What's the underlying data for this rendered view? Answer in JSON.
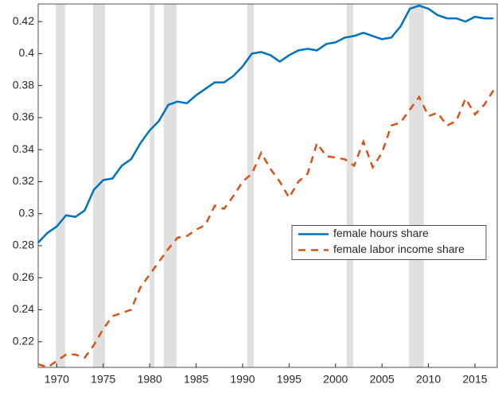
{
  "chart_data": {
    "type": "line",
    "x": [
      1968,
      1969,
      1970,
      1971,
      1972,
      1973,
      1974,
      1975,
      1976,
      1977,
      1978,
      1979,
      1980,
      1981,
      1982,
      1983,
      1984,
      1985,
      1986,
      1987,
      1988,
      1989,
      1990,
      1991,
      1992,
      1993,
      1994,
      1995,
      1996,
      1997,
      1998,
      1999,
      2000,
      2001,
      2002,
      2003,
      2004,
      2005,
      2006,
      2007,
      2008,
      2009,
      2010,
      2011,
      2012,
      2013,
      2014,
      2015,
      2016,
      2017
    ],
    "series": [
      {
        "name": "female hours share",
        "color": "#0072bd",
        "dash": false,
        "values": [
          0.282,
          0.288,
          0.292,
          0.299,
          0.298,
          0.302,
          0.315,
          0.321,
          0.322,
          0.33,
          0.334,
          0.344,
          0.352,
          0.358,
          0.368,
          0.37,
          0.369,
          0.374,
          0.378,
          0.382,
          0.382,
          0.386,
          0.392,
          0.4,
          0.401,
          0.399,
          0.395,
          0.399,
          0.402,
          0.403,
          0.402,
          0.406,
          0.407,
          0.41,
          0.411,
          0.413,
          0.411,
          0.409,
          0.41,
          0.417,
          0.428,
          0.43,
          0.428,
          0.424,
          0.422,
          0.422,
          0.42,
          0.423,
          0.422,
          0.422
        ]
      },
      {
        "name": "female labor income share",
        "color": "#d95319",
        "dash": true,
        "values": [
          0.206,
          0.204,
          0.208,
          0.212,
          0.212,
          0.21,
          0.218,
          0.228,
          0.236,
          0.238,
          0.24,
          0.254,
          0.262,
          0.27,
          0.278,
          0.285,
          0.286,
          0.29,
          0.293,
          0.305,
          0.303,
          0.311,
          0.32,
          0.325,
          0.338,
          0.328,
          0.32,
          0.31,
          0.32,
          0.325,
          0.344,
          0.336,
          0.335,
          0.334,
          0.33,
          0.345,
          0.329,
          0.338,
          0.355,
          0.357,
          0.365,
          0.373,
          0.361,
          0.363,
          0.355,
          0.358,
          0.372,
          0.362,
          0.368,
          0.377
        ]
      }
    ],
    "shaded_ranges": [
      [
        1969.9,
        1970.9
      ],
      [
        1973.9,
        1975.2
      ],
      [
        1980.0,
        1980.5
      ],
      [
        1981.5,
        1982.9
      ],
      [
        1990.5,
        1991.2
      ],
      [
        2001.2,
        2001.9
      ],
      [
        2007.9,
        2009.5
      ]
    ],
    "shade_color": "#e0e0e0",
    "xlim": [
      1968,
      2017.4
    ],
    "xticks": [
      1970,
      1975,
      1980,
      1985,
      1990,
      1995,
      2000,
      2005,
      2010,
      2015
    ],
    "ylim": [
      0.204,
      0.431
    ],
    "yticks": [
      0.22,
      0.24,
      0.26,
      0.28,
      0.3,
      0.32,
      0.34,
      0.36,
      0.38,
      0.4,
      0.42
    ],
    "legend": "center-right"
  }
}
